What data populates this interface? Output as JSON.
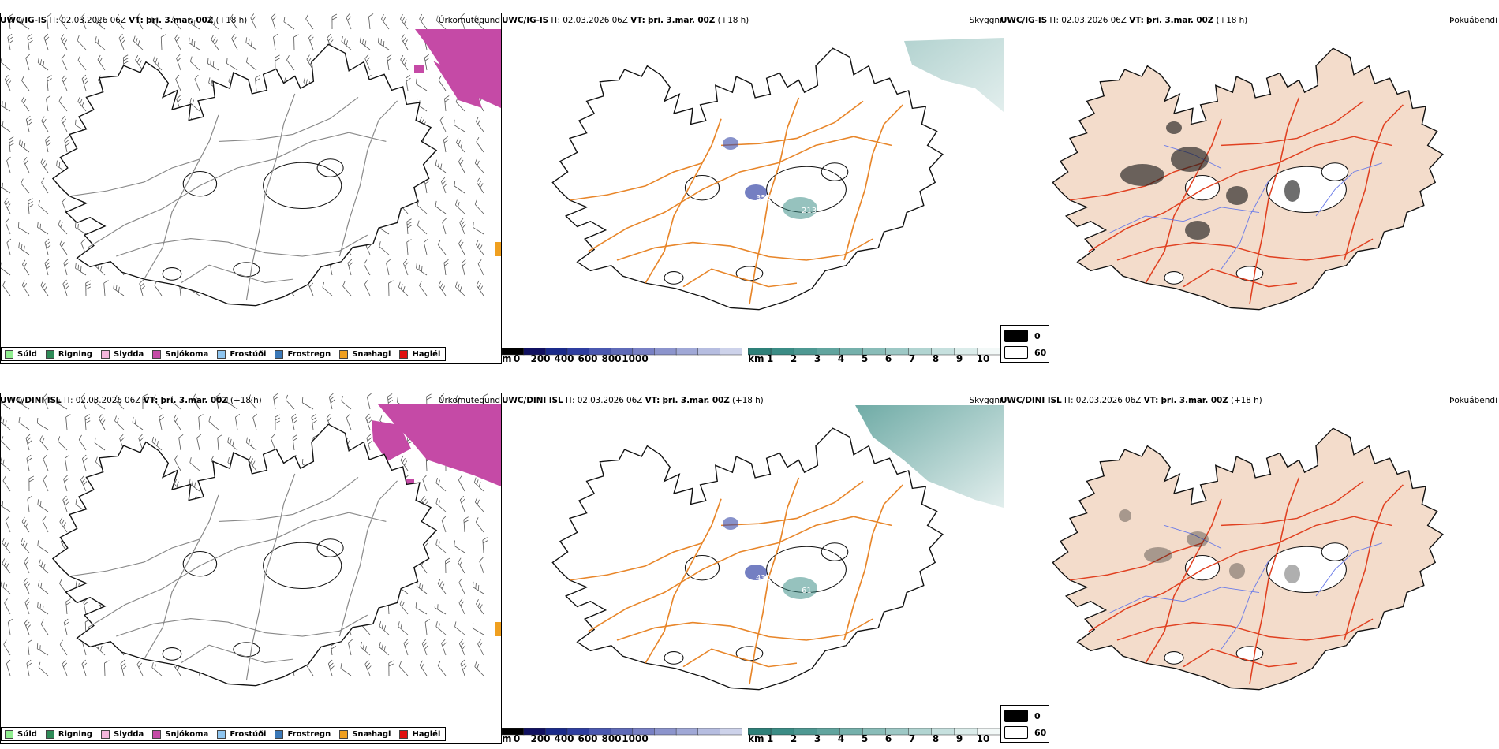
{
  "rows": [
    {
      "model": "UWC/IG-IS",
      "it_label": "IT:",
      "it_value": "02.03.2026 06Z",
      "vt_label": "VT:",
      "vt_value": "þri. 3.mar. 00Z",
      "lead": "(+18 h)",
      "snow_intensity": 0.35,
      "cloud_intensity": 0.4,
      "dark_intensity": 0.9,
      "labels": [
        "161",
        "355",
        "213"
      ]
    },
    {
      "model": "UWC/DINI ISL",
      "it_label": "IT:",
      "it_value": "02.03.2026 06Z",
      "vt_label": "VT:",
      "vt_value": "þri. 3.mar. 00Z",
      "lead": "(+18 h)",
      "snow_intensity": 0.6,
      "cloud_intensity": 0.75,
      "dark_intensity": 0.5,
      "labels": [
        "342",
        "430",
        "61"
      ]
    }
  ],
  "panel_titles": {
    "precip": "Úrkomutegund",
    "visibility": "Skyggni",
    "cloud": "Þokuábendi"
  },
  "precip_legend": [
    {
      "label": "Súld",
      "color": "#90ee90"
    },
    {
      "label": "Rigning",
      "color": "#2e8b57"
    },
    {
      "label": "Slydda",
      "color": "#f4b6dc"
    },
    {
      "label": "Snjókoma",
      "color": "#c54aa6"
    },
    {
      "label": "Frostúði",
      "color": "#8ec5f0"
    },
    {
      "label": "Frostregn",
      "color": "#3a78b8"
    },
    {
      "label": "Snæhagl",
      "color": "#f0a020"
    },
    {
      "label": "Haglél",
      "color": "#e01010"
    }
  ],
  "height_scale": {
    "unit": "m",
    "ticks": [
      "0",
      "200",
      "400",
      "600",
      "800",
      "1000"
    ],
    "colors": [
      "#000000",
      "#101060",
      "#1a2a8a",
      "#2e3ea0",
      "#4a58b0",
      "#5f6bb8",
      "#7880c4",
      "#8c94cc",
      "#a0a8d6",
      "#b6bde0",
      "#cdd2ea"
    ]
  },
  "visibility_scale": {
    "unit": "km",
    "ticks": [
      "1",
      "2",
      "3",
      "4",
      "5",
      "6",
      "7",
      "8",
      "9",
      "10"
    ],
    "colors": [
      "#2e8079",
      "#3b8c85",
      "#4e9892",
      "#61a49e",
      "#75b0ab",
      "#89bcb8",
      "#9dc8c5",
      "#b1d4d1",
      "#c6e0de",
      "#dbecea",
      "#f2f8f7"
    ]
  },
  "cloud_legend": {
    "top_label": "0",
    "bottom_label": "60"
  },
  "colors": {
    "snow": "#c54aa6",
    "sleet_small": "#f0a020",
    "visibility_fog": "#3f8f88",
    "roads_orange": "#e8862a",
    "roads_red": "#e04020",
    "land_tan": "#f3dccb",
    "rivers_blue": "#6a7be8"
  }
}
